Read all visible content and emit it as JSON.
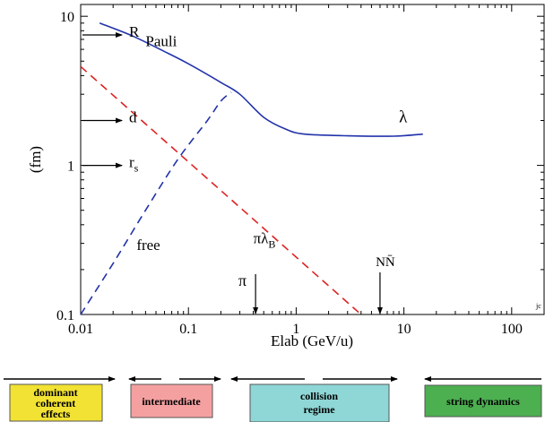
{
  "chart_data": {
    "type": "line",
    "xscale": "log",
    "yscale": "log",
    "xlim": [
      0.01,
      200
    ],
    "ylim": [
      0.1,
      12
    ],
    "xlabel": "Elab (GeV/u)",
    "ylabel": "(fm)",
    "xticks": [
      {
        "value": 0.01,
        "label": "0.01"
      },
      {
        "value": 0.1,
        "label": "0.1"
      },
      {
        "value": 1,
        "label": "1"
      },
      {
        "value": 10,
        "label": "10"
      },
      {
        "value": 100,
        "label": "100"
      }
    ],
    "yticks": [
      {
        "value": 0.1,
        "label": "0.1"
      },
      {
        "value": 1,
        "label": "1"
      },
      {
        "value": 10,
        "label": "10"
      }
    ],
    "series": [
      {
        "key": "lambda",
        "style": "solid",
        "color": "#2233aa",
        "points": [
          [
            0.015,
            9.0
          ],
          [
            0.03,
            7.4
          ],
          [
            0.06,
            5.8
          ],
          [
            0.1,
            4.8
          ],
          [
            0.2,
            3.6
          ],
          [
            0.3,
            3.0
          ],
          [
            0.5,
            2.1
          ],
          [
            0.8,
            1.75
          ],
          [
            1.2,
            1.62
          ],
          [
            3,
            1.58
          ],
          [
            8,
            1.57
          ],
          [
            15,
            1.62
          ]
        ]
      },
      {
        "key": "free",
        "style": "dashed",
        "color": "#2233aa",
        "points": [
          [
            0.01,
            0.1
          ],
          [
            0.02,
            0.22
          ],
          [
            0.04,
            0.5
          ],
          [
            0.08,
            1.1
          ],
          [
            0.15,
            2.0
          ],
          [
            0.2,
            2.7
          ],
          [
            0.25,
            3.1
          ]
        ]
      },
      {
        "key": "pi_lambda_B",
        "style": "dashed",
        "color": "#dd2222",
        "points": [
          [
            0.01,
            4.6
          ],
          [
            4,
            0.1
          ]
        ]
      }
    ],
    "annotations": {
      "pauli": {
        "text": "Pauli",
        "x": 0.04,
        "y": 6.3
      },
      "lambda": {
        "text": "λ",
        "x": 9,
        "y": 1.95
      },
      "free": {
        "text": "free",
        "x": 0.033,
        "y": 0.27
      },
      "pi_lambda_b_main": {
        "text": "πλ",
        "x": 0.4,
        "y": 0.3
      },
      "pi_lambda_b_sub": "B",
      "pi_marker": {
        "text": "π",
        "x": 0.42
      },
      "nnbar_marker": {
        "text": "NN̄",
        "x": 6
      },
      "corner": "jc"
    },
    "scale_markers": [
      {
        "label": "R",
        "value": 7.5
      },
      {
        "label": "d",
        "value": 2.0
      },
      {
        "label": "r",
        "sub": "s",
        "value": 1.0
      }
    ]
  },
  "regimes": [
    {
      "key": "dominant",
      "line1": "dominant",
      "line2": "coherent",
      "line3": "effects",
      "color": "#f2e233"
    },
    {
      "key": "intermediate",
      "line1": "intermediate",
      "color": "#f5a0a0"
    },
    {
      "key": "collision",
      "line1": "collision",
      "line2": "regime",
      "color": "#8fd6d6"
    },
    {
      "key": "string",
      "line1": "string dynamics",
      "color": "#4caf50"
    }
  ]
}
